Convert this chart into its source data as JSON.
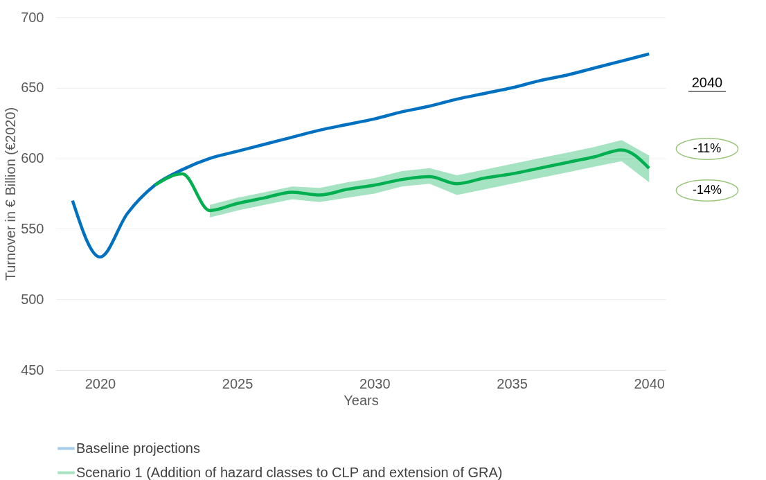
{
  "chart_data": {
    "type": "line",
    "xlabel": "Years",
    "ylabel": "Turnover in € Billion (€2020)",
    "x": [
      2019,
      2020,
      2021,
      2022,
      2023,
      2024,
      2025,
      2026,
      2027,
      2028,
      2029,
      2030,
      2031,
      2032,
      2033,
      2034,
      2035,
      2036,
      2037,
      2038,
      2039,
      2040
    ],
    "series": [
      {
        "name": "Baseline projections",
        "color": "#0070c0",
        "values": [
          570,
          530,
          561,
          581,
          592,
          600,
          605,
          610,
          615,
          620,
          624,
          628,
          633,
          637,
          642,
          646,
          650,
          655,
          659,
          664,
          669,
          674
        ]
      },
      {
        "name": "Scenario 1 (Addition of hazard classes to CLP and extension of GRA)",
        "color": "#00b050",
        "values": [
          null,
          null,
          null,
          581,
          589,
          563,
          568,
          572,
          576,
          574,
          578,
          581,
          585,
          587,
          582,
          586,
          589,
          593,
          597,
          601,
          606,
          593
        ],
        "lower": [
          null,
          null,
          null,
          null,
          null,
          558,
          563,
          567,
          571,
          569,
          572,
          575,
          580,
          582,
          574,
          578,
          582,
          586,
          590,
          594,
          598,
          583
        ],
        "upper": [
          null,
          null,
          null,
          null,
          null,
          567,
          572,
          576,
          580,
          579,
          583,
          586,
          591,
          593,
          588,
          592,
          596,
          600,
          604,
          608,
          613,
          602
        ]
      }
    ],
    "xlim": [
      2018.4,
      2040.6
    ],
    "xticks": [
      2020,
      2025,
      2030,
      2035,
      2040
    ],
    "ylim": [
      450,
      700
    ],
    "yticks": [
      450,
      500,
      550,
      600,
      650,
      700
    ],
    "grid": "y",
    "legend": "bottom left",
    "line_style": "solid",
    "annotations": [
      "2040",
      "-11%",
      "-14%"
    ]
  }
}
